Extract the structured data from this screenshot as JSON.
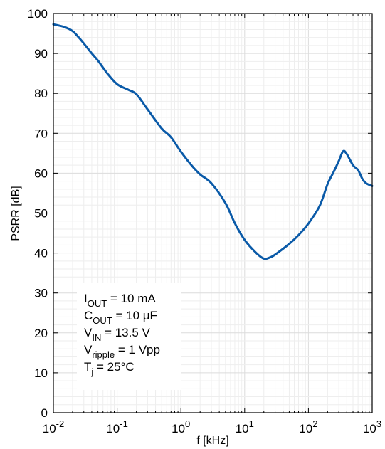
{
  "chart_data": {
    "type": "line",
    "title": "",
    "xlabel": "f [kHz]",
    "ylabel": "PSRR [dB]",
    "xscale": "log",
    "xlim": [
      0.01,
      1000
    ],
    "ylim": [
      0,
      100
    ],
    "grid": true,
    "line_color": "#0a5aa8",
    "x_tick_labels": [
      {
        "base": "10",
        "exp": "-2"
      },
      {
        "base": "10",
        "exp": "-1"
      },
      {
        "base": "10",
        "exp": "0"
      },
      {
        "base": "10",
        "exp": "1"
      },
      {
        "base": "10",
        "exp": "2"
      },
      {
        "base": "10",
        "exp": "3"
      }
    ],
    "y_tick_labels": [
      "0",
      "10",
      "20",
      "30",
      "40",
      "50",
      "60",
      "70",
      "80",
      "90",
      "100"
    ],
    "series": [
      {
        "x": [
          0.01,
          0.015,
          0.02,
          0.025,
          0.03,
          0.04,
          0.05,
          0.07,
          0.1,
          0.15,
          0.2,
          0.3,
          0.5,
          0.7,
          1,
          1.5,
          2,
          3,
          5,
          7,
          10,
          15,
          20,
          25,
          30,
          50,
          70,
          100,
          150,
          200,
          250,
          300,
          350,
          400,
          500,
          600,
          700,
          800,
          1000
        ],
        "y": [
          97.3,
          96.6,
          95.6,
          94.0,
          92.5,
          90.0,
          88.2,
          85.0,
          82.3,
          80.9,
          79.8,
          76.0,
          71.2,
          69.0,
          65.4,
          61.8,
          59.7,
          57.5,
          52.5,
          47.5,
          43.3,
          40.1,
          38.6,
          38.9,
          39.6,
          42.3,
          44.5,
          47.4,
          51.8,
          57.3,
          60.4,
          63.1,
          65.5,
          64.8,
          62.0,
          60.8,
          58.6,
          57.5,
          56.8
        ]
      }
    ],
    "annotation": {
      "lines": [
        {
          "main": "I",
          "sub": "OUT",
          "rest": " = 10 mA"
        },
        {
          "main": "C",
          "sub": "OUT",
          "rest": " = 10 μF"
        },
        {
          "main": "V",
          "sub": "IN",
          "rest": " = 13.5 V"
        },
        {
          "main": "V",
          "sub": "ripple",
          "rest": " = 1 Vpp"
        },
        {
          "main": "T",
          "sub": "j",
          "rest": " = 25°C"
        }
      ]
    }
  }
}
